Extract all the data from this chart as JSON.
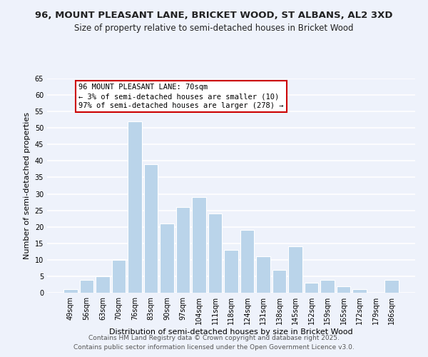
{
  "title1": "96, MOUNT PLEASANT LANE, BRICKET WOOD, ST ALBANS, AL2 3XD",
  "title2": "Size of property relative to semi-detached houses in Bricket Wood",
  "xlabel": "Distribution of semi-detached houses by size in Bricket Wood",
  "ylabel": "Number of semi-detached properties",
  "categories": [
    "49sqm",
    "56sqm",
    "63sqm",
    "70sqm",
    "76sqm",
    "83sqm",
    "90sqm",
    "97sqm",
    "104sqm",
    "111sqm",
    "118sqm",
    "124sqm",
    "131sqm",
    "138sqm",
    "145sqm",
    "152sqm",
    "159sqm",
    "165sqm",
    "172sqm",
    "179sqm",
    "186sqm"
  ],
  "values": [
    1,
    4,
    5,
    10,
    52,
    39,
    21,
    26,
    29,
    24,
    13,
    19,
    11,
    7,
    14,
    3,
    4,
    2,
    1,
    0,
    4
  ],
  "highlight_index": 3,
  "bar_color_normal": "#bad4ea",
  "bar_edge_color": "#ffffff",
  "background_color": "#eef2fb",
  "grid_color": "#ffffff",
  "annotation_box_text": "96 MOUNT PLEASANT LANE: 70sqm\n← 3% of semi-detached houses are smaller (10)\n97% of semi-detached houses are larger (278) →",
  "annotation_box_color": "#ffffff",
  "annotation_box_edge_color": "#cc0000",
  "ylim": [
    0,
    65
  ],
  "yticks": [
    0,
    5,
    10,
    15,
    20,
    25,
    30,
    35,
    40,
    45,
    50,
    55,
    60,
    65
  ],
  "footer1": "Contains HM Land Registry data © Crown copyright and database right 2025.",
  "footer2": "Contains public sector information licensed under the Open Government Licence v3.0.",
  "title_fontsize": 9.5,
  "subtitle_fontsize": 8.5,
  "axis_label_fontsize": 8,
  "tick_fontsize": 7,
  "annotation_fontsize": 7.5,
  "footer_fontsize": 6.5
}
